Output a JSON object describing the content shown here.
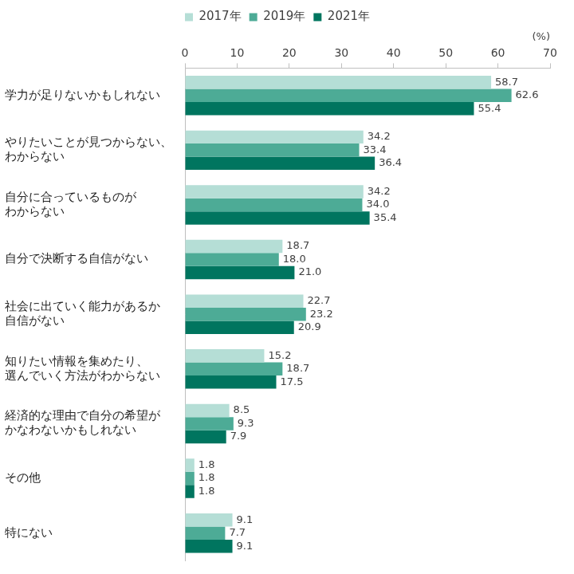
{
  "chart_data": {
    "type": "bar",
    "orientation": "horizontal",
    "x_label": "(%)",
    "categories": [
      "学力が足りないかもしれない",
      "やりたいことが見つからない、\nわからない",
      "自分に合っているものが\nわからない",
      "自分で決断する自信がない",
      "社会に出ていく能力があるか\n自信がない",
      "知りたい情報を集めたり、\n選んでいく方法がわからない",
      "経済的な理由で自分の希望が\nかなわないかもしれない",
      "その他",
      "特にない"
    ],
    "series": [
      {
        "name": "2017年",
        "color": "#b5ded6",
        "values": [
          58.7,
          34.2,
          34.2,
          18.7,
          22.7,
          15.2,
          8.5,
          1.8,
          9.1
        ],
        "value_labels": [
          "58.7",
          "34.2",
          "34.2",
          "18.7",
          "22.7",
          "15.2",
          "8.5",
          "1.8",
          "9.1"
        ]
      },
      {
        "name": "2019年",
        "color": "#4dab96",
        "values": [
          62.6,
          33.4,
          34.0,
          18.0,
          23.2,
          18.7,
          9.3,
          1.8,
          7.7
        ],
        "value_labels": [
          "62.6",
          "33.4",
          "34.0",
          "18.0",
          "23.2",
          "18.7",
          "9.3",
          "1.8",
          "7.7"
        ]
      },
      {
        "name": "2021年",
        "color": "#00755f",
        "values": [
          55.4,
          36.4,
          35.4,
          21.0,
          20.9,
          17.5,
          7.9,
          1.8,
          9.1
        ],
        "value_labels": [
          "55.4",
          "36.4",
          "35.4",
          "21.0",
          "20.9",
          "17.5",
          "7.9",
          "1.8",
          "9.1"
        ]
      }
    ],
    "xlim": [
      0,
      70
    ],
    "xticks": [
      0,
      10,
      20,
      30,
      40,
      50,
      60,
      70
    ],
    "grid": false,
    "legend": "top",
    "data_labels": true
  }
}
